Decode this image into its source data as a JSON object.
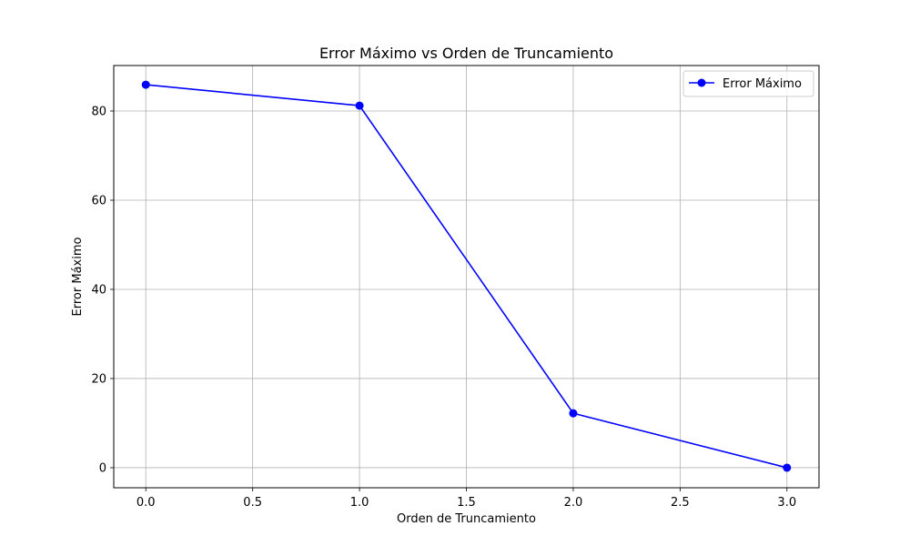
{
  "chart_data": {
    "type": "line",
    "title": "Error Máximo vs Orden de Truncamiento",
    "xlabel": "Orden de Truncamiento",
    "ylabel": "Error Máximo",
    "xlim": [
      -0.15,
      3.15
    ],
    "ylim": [
      -4.5,
      90.2
    ],
    "xticks": [
      0.0,
      0.5,
      1.0,
      1.5,
      2.0,
      2.5,
      3.0
    ],
    "xtick_labels": [
      "0.0",
      "0.5",
      "1.0",
      "1.5",
      "2.0",
      "2.5",
      "3.0"
    ],
    "yticks": [
      0,
      20,
      40,
      60,
      80
    ],
    "ytick_labels": [
      "0",
      "20",
      "40",
      "60",
      "80"
    ],
    "grid": true,
    "legend_position": "top-right",
    "series": [
      {
        "name": "Error Máximo",
        "color": "#0000ff",
        "marker": "circle",
        "x": [
          0,
          1,
          2,
          3
        ],
        "y": [
          85.9,
          81.2,
          12.2,
          0.0
        ]
      }
    ]
  }
}
